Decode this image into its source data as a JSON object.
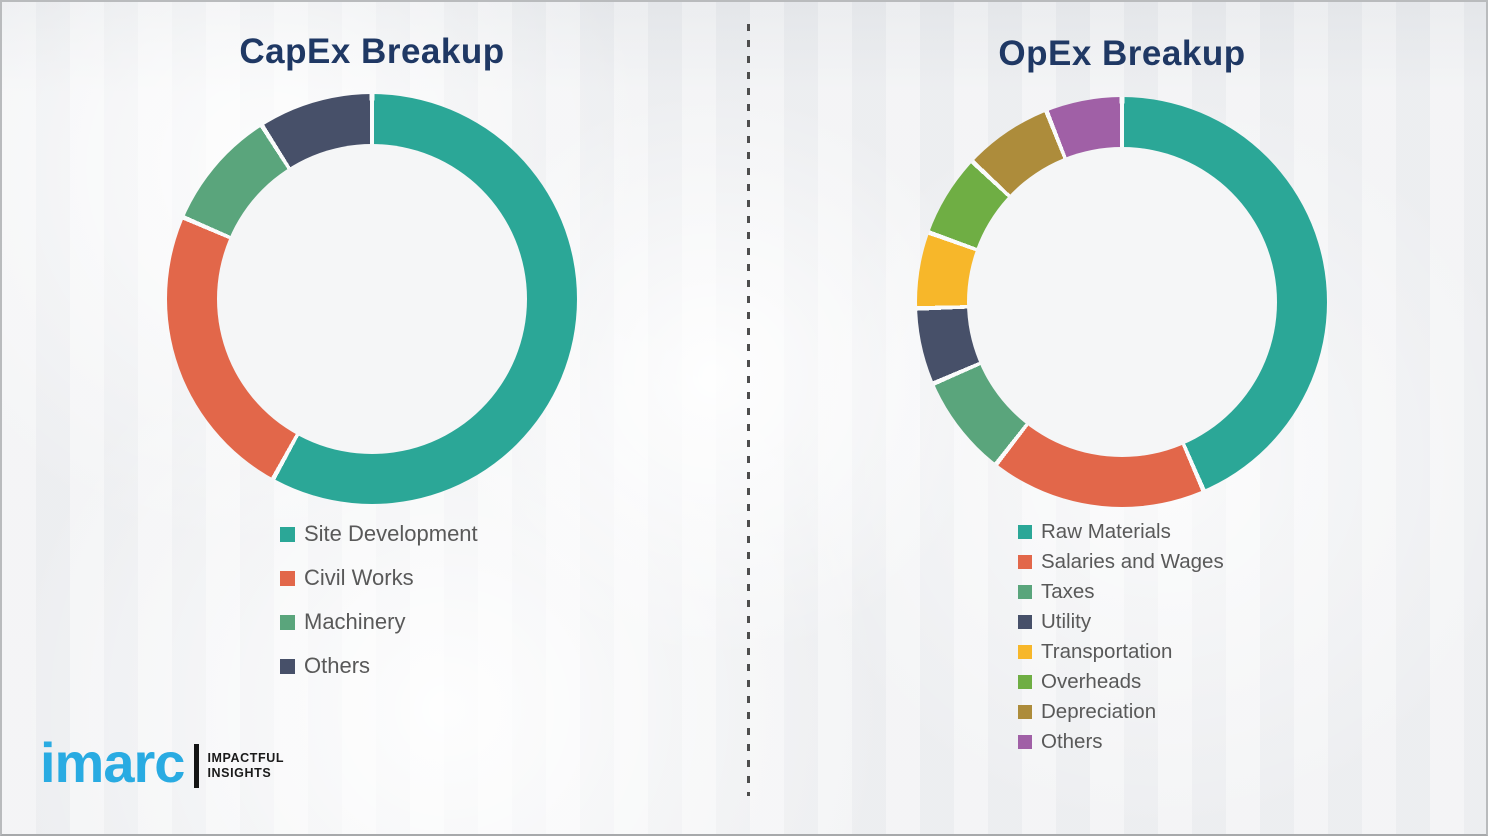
{
  "chart_data": [
    {
      "type": "pie",
      "variant": "donut",
      "title": "CapEx Breakup",
      "labels": [
        "Site Development",
        "Civil Works",
        "Machinery",
        "Others"
      ],
      "values": [
        58,
        23.5,
        9.5,
        9
      ],
      "unit": "percent-of-ring",
      "colors": [
        "#2BA797",
        "#E2674A",
        "#5AA57C",
        "#475069"
      ],
      "start_angle_deg": 0,
      "direction": "clockwise",
      "legend_position": "below-left",
      "data_labels": "none"
    },
    {
      "type": "pie",
      "variant": "donut",
      "title": "OpEx Breakup",
      "labels": [
        "Raw Materials",
        "Salaries and Wages",
        "Taxes",
        "Utility",
        "Transportation",
        "Overheads",
        "Depreciation",
        "Others"
      ],
      "values": [
        43.5,
        17,
        8,
        6,
        6,
        6.5,
        7,
        6
      ],
      "unit": "percent-of-ring",
      "colors": [
        "#2BA797",
        "#E2674A",
        "#5AA57C",
        "#475069",
        "#F7B72A",
        "#6FAE44",
        "#AD8C3B",
        "#A060A6"
      ],
      "start_angle_deg": 0,
      "direction": "clockwise",
      "legend_position": "below-left",
      "data_labels": "none"
    }
  ],
  "divider": {
    "style": "vertical-dashed",
    "color": "#4d4d4d"
  },
  "branding": {
    "logo_text": "imarc",
    "logo_color": "#29ABE2",
    "tagline_line1": "IMPACTFUL",
    "tagline_line2": "INSIGHTS"
  }
}
